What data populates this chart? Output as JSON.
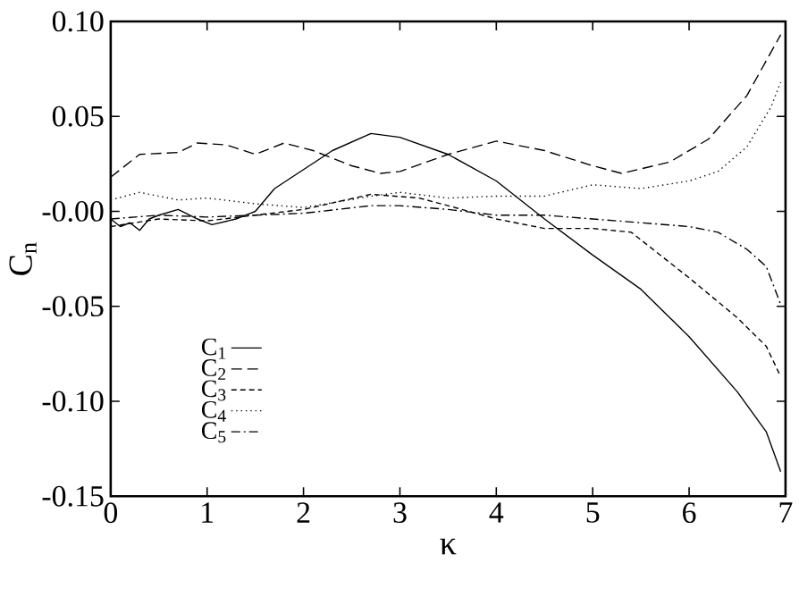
{
  "chart_data": {
    "type": "line",
    "xlabel": "κ",
    "ylabel": "C$_{n}$",
    "xlim": [
      0,
      7
    ],
    "ylim": [
      -0.15,
      0.1
    ],
    "xticks": [
      0,
      1,
      2,
      3,
      4,
      5,
      6,
      7
    ],
    "yticks": [
      -0.15,
      {
        "value": -0.1,
        "label": "-0.10"
      },
      -0.05,
      {
        "value": 0,
        "label": "-0.00"
      },
      0.05,
      {
        "value": 0.1,
        "label": "0.10"
      }
    ],
    "legend": "bottom left",
    "grid": false,
    "marker": "none",
    "series": [
      {
        "name": "C$_{1}$",
        "color": "#000000",
        "line_style": "solid",
        "x": [
          0,
          0.1,
          0.2,
          0.3,
          0.4,
          0.5,
          0.7,
          0.9,
          1.05,
          1.3,
          1.45,
          1.5,
          1.7,
          2,
          2.3,
          2.7,
          3,
          3.5,
          4,
          4.5,
          5,
          5.5,
          6,
          6.5,
          6.8,
          6.95
        ],
        "values": [
          -0.004,
          -0.008,
          -0.006,
          -0.01,
          -0.004,
          -0.002,
          0.001,
          -0.004,
          -0.007,
          -0.004,
          -0.001,
          0.0,
          0.012,
          0.022,
          0.032,
          0.041,
          0.039,
          0.03,
          0.016,
          -0.004,
          -0.023,
          -0.041,
          -0.066,
          -0.095,
          -0.116,
          -0.137
        ]
      },
      {
        "name": "C$_{2}$",
        "color": "#000000",
        "line_style": "longdashed",
        "x": [
          0,
          0.3,
          0.7,
          0.9,
          1.2,
          1.5,
          1.8,
          2.1,
          2.5,
          2.8,
          3,
          3.5,
          4,
          4.5,
          5,
          5.3,
          5.8,
          6.2,
          6.6,
          6.95
        ],
        "values": [
          0.018,
          0.03,
          0.031,
          0.036,
          0.035,
          0.03,
          0.036,
          0.032,
          0.024,
          0.02,
          0.021,
          0.03,
          0.037,
          0.032,
          0.024,
          0.02,
          0.026,
          0.038,
          0.061,
          0.093
        ]
      },
      {
        "name": "C$_{3}$",
        "color": "#000000",
        "line_style": "dashed",
        "x": [
          0,
          0.5,
          1,
          2,
          2.7,
          3.2,
          3.5,
          4,
          4.5,
          5,
          5.4,
          6,
          6.5,
          6.8,
          6.95
        ],
        "values": [
          -0.008,
          -0.004,
          -0.005,
          0.001,
          0.009,
          0.007,
          0.003,
          -0.004,
          -0.009,
          -0.009,
          -0.011,
          -0.035,
          -0.056,
          -0.071,
          -0.087
        ]
      },
      {
        "name": "C$_{4}$",
        "color": "#000000",
        "line_style": "dotted",
        "x": [
          0,
          0.3,
          0.7,
          1,
          1.5,
          2,
          2.7,
          3,
          3.5,
          4,
          4.5,
          5,
          5.5,
          6,
          6.3,
          6.6,
          6.85,
          6.95
        ],
        "values": [
          0.006,
          0.01,
          0.006,
          0.007,
          0.004,
          0.002,
          0.008,
          0.01,
          0.007,
          0.008,
          0.008,
          0.014,
          0.012,
          0.016,
          0.021,
          0.034,
          0.055,
          0.068
        ]
      },
      {
        "name": "C$_{5}$",
        "color": "#000000",
        "line_style": "dashdot",
        "x": [
          0,
          0.5,
          1,
          2,
          2.7,
          3,
          3.5,
          4,
          4.5,
          5,
          5.5,
          6,
          6.3,
          6.6,
          6.8,
          6.95
        ],
        "values": [
          -0.004,
          -0.002,
          -0.003,
          -0.001,
          0.003,
          0.003,
          0.001,
          -0.002,
          -0.002,
          -0.004,
          -0.006,
          -0.008,
          -0.011,
          -0.02,
          -0.029,
          -0.049
        ]
      }
    ]
  }
}
